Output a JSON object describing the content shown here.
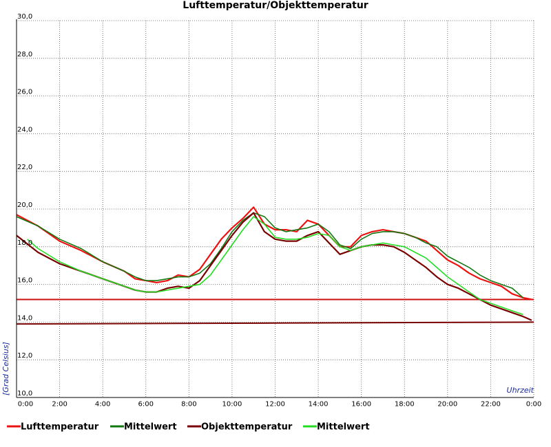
{
  "chart_data": {
    "type": "line",
    "title": "Lufttemperatur/Objekttemperatur",
    "xlabel": "Uhrzeit",
    "ylabel": "[Grad Celsius]",
    "ylim": [
      10,
      30
    ],
    "xlim": [
      0,
      24
    ],
    "grid": true,
    "legend_position": "bottom",
    "x_ticks": [
      "0:00",
      "2:00",
      "4:00",
      "6:00",
      "8:00",
      "10:00",
      "12:00",
      "14:00",
      "16:00",
      "18:00",
      "20:00",
      "22:00",
      "0:00"
    ],
    "y_ticks": [
      "10,0",
      "12,0",
      "14,0",
      "16,0",
      "18,0",
      "20,0",
      "22,0",
      "24,0",
      "26,0",
      "28,0",
      "30,0"
    ],
    "colors": {
      "lufttemperatur": "#ee1111",
      "mittelwert_luft": "#117711",
      "objekttemperatur": "#7a0000",
      "mittelwert_objekt": "#22dd22",
      "ref_line_luft": "#cc1111",
      "ref_line_objekt": "#7a0000"
    },
    "series": [
      {
        "name": "Lufttemperatur",
        "color": "#ee1111",
        "x": [
          0,
          1,
          2,
          3,
          4,
          5,
          5.5,
          6,
          6.5,
          7,
          7.5,
          8,
          8.5,
          9,
          9.5,
          10,
          10.5,
          11,
          11.5,
          12,
          12.5,
          13,
          13.5,
          14,
          14.5,
          15,
          15.5,
          16,
          16.5,
          17,
          17.5,
          18,
          18.5,
          19,
          19.5,
          20,
          20.5,
          21,
          21.5,
          22,
          22.5,
          23,
          23.5,
          23.9
        ],
        "y": [
          19.7,
          19.1,
          18.3,
          17.8,
          17.2,
          16.7,
          16.3,
          16.2,
          16.1,
          16.2,
          16.5,
          16.4,
          16.8,
          17.6,
          18.4,
          19.0,
          19.5,
          20.1,
          19.2,
          18.9,
          18.9,
          18.8,
          19.4,
          19.2,
          18.6,
          18.0,
          18.0,
          18.6,
          18.8,
          18.9,
          18.8,
          18.7,
          18.5,
          18.3,
          17.8,
          17.3,
          17.0,
          16.6,
          16.3,
          16.1,
          15.9,
          15.5,
          15.3,
          15.2
        ]
      },
      {
        "name": "Mittelwert",
        "color": "#117711",
        "x": [
          0,
          1,
          2,
          3,
          4,
          5,
          5.5,
          6,
          6.5,
          7,
          7.5,
          8,
          8.5,
          9,
          9.5,
          10,
          10.5,
          11,
          11.5,
          12,
          12.5,
          13,
          13.5,
          14,
          14.5,
          15,
          15.5,
          16,
          16.5,
          17,
          17.5,
          18,
          18.5,
          19,
          19.5,
          20,
          20.5,
          21,
          21.5,
          22,
          22.5,
          23,
          23.5
        ],
        "y": [
          19.6,
          19.1,
          18.4,
          17.9,
          17.2,
          16.7,
          16.4,
          16.2,
          16.2,
          16.3,
          16.4,
          16.4,
          16.6,
          17.1,
          17.9,
          18.8,
          19.4,
          19.8,
          19.6,
          19.0,
          18.8,
          18.9,
          19.0,
          19.2,
          18.8,
          18.1,
          17.9,
          18.4,
          18.7,
          18.8,
          18.8,
          18.7,
          18.5,
          18.2,
          18.0,
          17.5,
          17.2,
          16.9,
          16.5,
          16.2,
          16.0,
          15.8,
          15.3
        ]
      },
      {
        "name": "Objekttemperatur",
        "color": "#7a0000",
        "x": [
          0,
          1,
          2,
          3,
          4,
          5,
          5.5,
          6,
          6.5,
          7,
          7.5,
          8,
          8.5,
          9,
          9.5,
          10,
          10.5,
          11,
          11.5,
          12,
          12.5,
          13,
          13.5,
          14,
          14.5,
          15,
          15.5,
          16,
          16.5,
          17,
          17.5,
          18,
          18.5,
          19,
          19.5,
          20,
          20.5,
          21,
          21.5,
          22,
          22.5,
          23,
          23.5,
          23.9
        ],
        "y": [
          18.6,
          17.7,
          17.1,
          16.7,
          16.3,
          15.9,
          15.7,
          15.6,
          15.6,
          15.8,
          15.9,
          15.8,
          16.2,
          17.0,
          17.8,
          18.6,
          19.3,
          19.8,
          18.8,
          18.4,
          18.3,
          18.3,
          18.6,
          18.8,
          18.2,
          17.6,
          17.8,
          18.0,
          18.1,
          18.1,
          18.0,
          17.7,
          17.3,
          16.9,
          16.4,
          16.0,
          15.8,
          15.5,
          15.2,
          14.9,
          14.7,
          14.5,
          14.3,
          14.1
        ]
      },
      {
        "name": "Mittelwert",
        "color": "#22dd22",
        "x": [
          0.5,
          1,
          2,
          3,
          4,
          5,
          5.5,
          6,
          6.5,
          7,
          7.5,
          8,
          8.5,
          9,
          9.5,
          10,
          10.5,
          11,
          11.5,
          12,
          12.5,
          13,
          13.5,
          14,
          14.5,
          15,
          15.5,
          16,
          16.5,
          17,
          17.5,
          18,
          18.5,
          19,
          19.5,
          20,
          20.5,
          21,
          21.5,
          22,
          22.5,
          23,
          23.5
        ],
        "y": [
          18.4,
          17.9,
          17.2,
          16.7,
          16.3,
          15.9,
          15.7,
          15.6,
          15.6,
          15.7,
          15.8,
          15.9,
          16.0,
          16.5,
          17.3,
          18.1,
          18.9,
          19.6,
          19.2,
          18.5,
          18.4,
          18.4,
          18.5,
          18.7,
          18.6,
          18.0,
          17.8,
          18.0,
          18.1,
          18.2,
          18.1,
          18.0,
          17.7,
          17.4,
          16.9,
          16.4,
          16.0,
          15.6,
          15.2,
          15.0,
          14.8,
          14.6,
          14.4
        ]
      }
    ],
    "reference_lines": [
      {
        "name": "Lufttemperatur",
        "color": "#cc1111",
        "y": [
          15.2,
          15.2
        ]
      },
      {
        "name": "Objekttemperatur",
        "color": "#7a0000",
        "y": [
          13.9,
          14.0
        ]
      }
    ],
    "legend": [
      {
        "label": "Lufttemperatur",
        "color": "#ee1111"
      },
      {
        "label": "Mittelwert",
        "color": "#117711"
      },
      {
        "label": "Objekttemperatur",
        "color": "#7a0000"
      },
      {
        "label": "Mittelwert",
        "color": "#22dd22"
      }
    ]
  }
}
